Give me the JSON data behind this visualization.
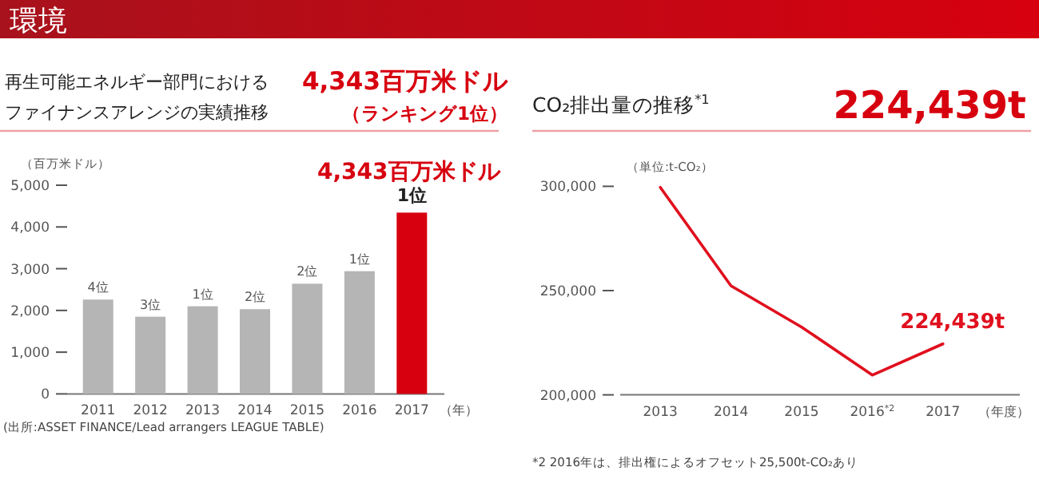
{
  "chart_data": [
    {
      "type": "bar",
      "title": "再生可能エネルギー部門におけるファイナンスアレンジの実績推移",
      "subtitle": "4,343百万米ドル",
      "ylabel": "（百万米ドル）",
      "xlabel": "（年）",
      "categories": [
        "2011",
        "2012",
        "2013",
        "2014",
        "2015",
        "2016",
        "2017"
      ],
      "values": [
        2260,
        1850,
        2100,
        2030,
        2640,
        2940,
        4343
      ],
      "colors": [
        "#b5b5b5",
        "#b5b5b5",
        "#b5b5b5",
        "#b5b5b5",
        "#b5b5b5",
        "#b5b5b5",
        "#d7000f"
      ],
      "ylim": [
        0,
        5000
      ],
      "yticks": [
        0,
        {
          "value": 1000,
          "label": "1,000"
        },
        {
          "value": 2000,
          "label": "2,000"
        },
        {
          "value": 3000,
          "label": "3,000"
        },
        {
          "value": 4000,
          "label": "4,000"
        },
        {
          "value": 5000,
          "label": "5,000"
        }
      ],
      "annotations": [
        "環境",
        "（ランキング1位）",
        "(出所:ASSET FINANCE/Lead arrangers LEAGUE TABLE)",
        {
          "text": "4位",
          "x": "2011",
          "y": 2260
        },
        {
          "text": "3位",
          "x": "2012",
          "y": 1850
        },
        {
          "text": "1位",
          "x": "2013",
          "y": 2100
        },
        {
          "text": "2位",
          "x": "2014",
          "y": 2030
        },
        {
          "text": "2位",
          "x": "2015",
          "y": 2640
        },
        {
          "text": "1位",
          "x": "2016",
          "y": 2940
        },
        {
          "text": "1位",
          "x": "2017",
          "y": 4343
        },
        {
          "text": "4,343百万米ドル",
          "x": "2017",
          "y": 4343
        }
      ]
    },
    {
      "type": "line",
      "title": "CO₂排出量の推移$^{*1}$",
      "subtitle": "224,439t",
      "ylabel": "（単位:t-CO₂）",
      "xlabel": "（年度）",
      "categories": [
        "2013",
        "2014",
        "2015",
        "2016$^{*2}$",
        "2017"
      ],
      "series": [
        {
          "color": "#e0101e",
          "values": [
            299500,
            252300,
            232500,
            209500,
            224439
          ]
        }
      ],
      "ylim": [
        200000,
        300000
      ],
      "yticks": [
        {
          "value": 200000,
          "label": "200,000"
        },
        {
          "value": 250000,
          "label": "250,000"
        },
        {
          "value": 300000,
          "label": "300,000"
        }
      ],
      "annotations": [
        "*2 2016年は、排出権によるオフセット25,500t-CO₂あり",
        {
          "text": "224,439t",
          "x": "2017",
          "y": 224439
        }
      ]
    }
  ]
}
